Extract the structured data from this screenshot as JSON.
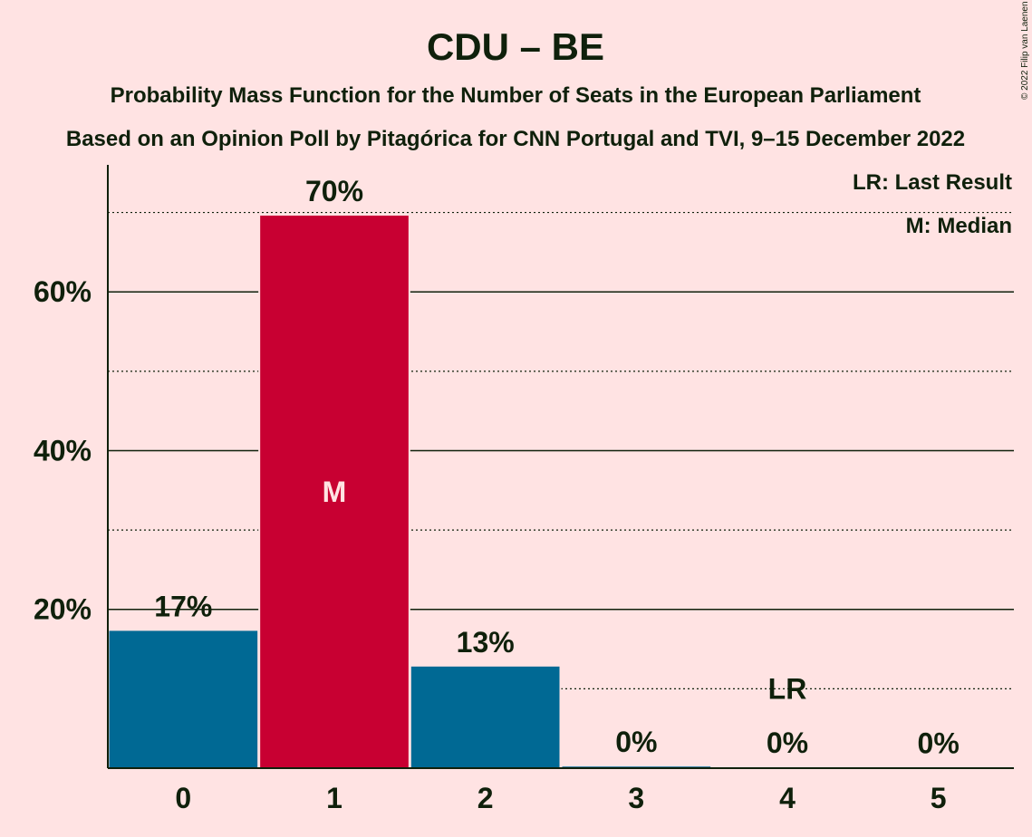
{
  "chart_data": {
    "type": "bar",
    "title": "CDU – BE",
    "subtitle_1": "Probability Mass Function for the Number of Seats in the European Parliament",
    "subtitle_2": "Based on an Opinion Poll by Pitagórica for CNN Portugal and TVI, 9–15 December 2022",
    "categories": [
      "0",
      "1",
      "2",
      "3",
      "4",
      "5"
    ],
    "values": [
      17.3,
      69.6,
      12.8,
      0.2,
      0.1,
      0.05
    ],
    "data_labels": [
      "17%",
      "70%",
      "13%",
      "0%",
      "0%",
      "0%"
    ],
    "ylim": [
      0,
      76
    ],
    "yticks": [
      {
        "value": 20,
        "label": "20%"
      },
      {
        "value": 40,
        "label": "40%"
      },
      {
        "value": 60,
        "label": "60%"
      }
    ],
    "dotted_gridlines": [
      10,
      30,
      50,
      70
    ],
    "median_index": 1,
    "median_mark": "M",
    "last_result_index": 4,
    "last_result_mark": "LR",
    "last_result_line_value": 10,
    "legend": [
      "LR: Last Result",
      "M: Median"
    ],
    "legend_position": "top-right",
    "colors": {
      "background": "#ffe3e3",
      "bar_default": "#006994",
      "bar_median": "#c80032",
      "text": "#0f200b"
    }
  },
  "copyright": "© 2022 Filip van Laenen"
}
